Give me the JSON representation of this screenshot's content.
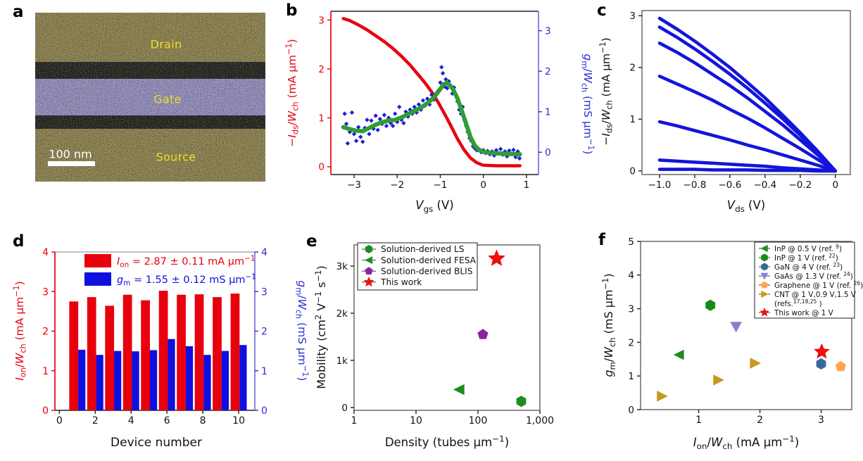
{
  "panels": {
    "a": {
      "letter": "a",
      "labels": {
        "drain": "Drain",
        "gate": "Gate",
        "source": "Source"
      },
      "scale_bar": "100 nm",
      "colors": {
        "electrode": "#9a8d52",
        "spacer": "#211f1a",
        "gate": "#a29cd4",
        "label_text": "#ecdf25",
        "scale_bar": "#ffffff"
      }
    },
    "b": {
      "letter": "b"
    },
    "c": {
      "letter": "c"
    },
    "d": {
      "letter": "d"
    },
    "e": {
      "letter": "e"
    },
    "f": {
      "letter": "f"
    }
  },
  "chart_data": [
    {
      "id": "b",
      "type": "line+scatter",
      "xlabel": "*V*_gs_ (V)",
      "xlim": [
        -3.54,
        1.28
      ],
      "xticks": [
        -3,
        -2,
        -1,
        0,
        1
      ],
      "axes_left": {
        "label": "−*I*_ds_/*W*_ch_ (mA µm^−1^)",
        "lim": [
          -0.16,
          3.18
        ],
        "ticks": [
          0,
          1,
          2,
          3
        ],
        "color": "#e8000d",
        "spine": "#e8000d"
      },
      "axes_right": {
        "label": "*g*_m_/*W*_ch_ (mS µm^−1^)",
        "lim": [
          -0.55,
          3.48
        ],
        "ticks": [
          0,
          1,
          2,
          3
        ],
        "color": "#2b2bcf",
        "spine": "#7474dc"
      },
      "series": [
        {
          "name": "drain-current",
          "axis": "left",
          "kind": "line",
          "color": "#e8000d",
          "width": 4.5,
          "points": [
            [
              -3.25,
              3.03
            ],
            [
              -3.1,
              2.99
            ],
            [
              -2.9,
              2.9
            ],
            [
              -2.7,
              2.8
            ],
            [
              -2.5,
              2.68
            ],
            [
              -2.3,
              2.56
            ],
            [
              -2.1,
              2.42
            ],
            [
              -1.9,
              2.26
            ],
            [
              -1.7,
              2.08
            ],
            [
              -1.5,
              1.87
            ],
            [
              -1.35,
              1.71
            ],
            [
              -1.2,
              1.53
            ],
            [
              -1.05,
              1.32
            ],
            [
              -0.9,
              1.08
            ],
            [
              -0.75,
              0.83
            ],
            [
              -0.6,
              0.57
            ],
            [
              -0.45,
              0.35
            ],
            [
              -0.3,
              0.18
            ],
            [
              -0.15,
              0.08
            ],
            [
              0,
              0.03
            ],
            [
              0.3,
              0.02
            ],
            [
              0.6,
              0.02
            ],
            [
              0.85,
              0.02
            ]
          ]
        },
        {
          "name": "transconductance-measured",
          "axis": "right",
          "kind": "scatter",
          "marker": "diamond",
          "size": 3.2,
          "color": "#1f1fd8",
          "points": [
            [
              -3.22,
              0.95
            ],
            [
              -3.18,
              0.7
            ],
            [
              -3.15,
              0.22
            ],
            [
              -3.1,
              0.5
            ],
            [
              -3.05,
              0.98
            ],
            [
              -3.0,
              0.45
            ],
            [
              -2.95,
              0.28
            ],
            [
              -2.9,
              0.62
            ],
            [
              -2.85,
              0.38
            ],
            [
              -2.8,
              0.26
            ],
            [
              -2.75,
              0.6
            ],
            [
              -2.7,
              0.8
            ],
            [
              -2.65,
              0.45
            ],
            [
              -2.6,
              0.78
            ],
            [
              -2.55,
              0.58
            ],
            [
              -2.5,
              0.9
            ],
            [
              -2.45,
              0.55
            ],
            [
              -2.4,
              0.82
            ],
            [
              -2.35,
              0.7
            ],
            [
              -2.3,
              0.92
            ],
            [
              -2.25,
              0.65
            ],
            [
              -2.2,
              0.85
            ],
            [
              -2.15,
              0.72
            ],
            [
              -2.1,
              0.65
            ],
            [
              -2.05,
              0.95
            ],
            [
              -2.0,
              0.75
            ],
            [
              -1.95,
              1.12
            ],
            [
              -1.9,
              0.8
            ],
            [
              -1.85,
              0.72
            ],
            [
              -1.8,
              1.0
            ],
            [
              -1.75,
              0.88
            ],
            [
              -1.7,
              1.05
            ],
            [
              -1.65,
              0.95
            ],
            [
              -1.6,
              1.12
            ],
            [
              -1.55,
              0.98
            ],
            [
              -1.5,
              1.18
            ],
            [
              -1.45,
              1.05
            ],
            [
              -1.4,
              1.28
            ],
            [
              -1.35,
              1.15
            ],
            [
              -1.3,
              1.32
            ],
            [
              -1.25,
              1.18
            ],
            [
              -1.2,
              1.42
            ],
            [
              -1.15,
              1.3
            ],
            [
              -1.1,
              1.45
            ],
            [
              -1.05,
              1.52
            ],
            [
              -1.0,
              1.72
            ],
            [
              -0.97,
              2.1
            ],
            [
              -0.94,
              1.95
            ],
            [
              -0.9,
              1.62
            ],
            [
              -0.87,
              1.8
            ],
            [
              -0.84,
              1.58
            ],
            [
              -0.8,
              1.75
            ],
            [
              -0.76,
              1.65
            ],
            [
              -0.72,
              1.45
            ],
            [
              -0.68,
              1.6
            ],
            [
              -0.64,
              1.42
            ],
            [
              -0.6,
              1.25
            ],
            [
              -0.56,
              1.05
            ],
            [
              -0.52,
              0.95
            ],
            [
              -0.48,
              1.12
            ],
            [
              -0.44,
              0.8
            ],
            [
              -0.4,
              0.65
            ],
            [
              -0.36,
              0.5
            ],
            [
              -0.32,
              0.35
            ],
            [
              -0.28,
              0.28
            ],
            [
              -0.24,
              0.15
            ],
            [
              -0.2,
              0.1
            ],
            [
              -0.15,
              0.05
            ],
            [
              -0.1,
              0.08
            ],
            [
              -0.05,
              0.0
            ],
            [
              0.0,
              0.05
            ],
            [
              0.05,
              -0.02
            ],
            [
              0.1,
              0.03
            ],
            [
              0.15,
              -0.05
            ],
            [
              0.2,
              0.02
            ],
            [
              0.25,
              -0.08
            ],
            [
              0.3,
              0.05
            ],
            [
              0.35,
              -0.03
            ],
            [
              0.4,
              0.08
            ],
            [
              0.45,
              -0.06
            ],
            [
              0.5,
              0.02
            ],
            [
              0.55,
              -0.1
            ],
            [
              0.6,
              0.04
            ],
            [
              0.65,
              -0.04
            ],
            [
              0.7,
              0.06
            ],
            [
              0.75,
              -0.12
            ],
            [
              0.8,
              0.02
            ],
            [
              0.84,
              -0.15
            ]
          ]
        },
        {
          "name": "transconductance-smoothed",
          "axis": "right",
          "kind": "line",
          "color": "#2f9e33",
          "width": 6,
          "points": [
            [
              -3.25,
              0.62
            ],
            [
              -3.1,
              0.57
            ],
            [
              -2.95,
              0.53
            ],
            [
              -2.8,
              0.52
            ],
            [
              -2.65,
              0.6
            ],
            [
              -2.5,
              0.68
            ],
            [
              -2.35,
              0.74
            ],
            [
              -2.2,
              0.78
            ],
            [
              -2.05,
              0.8
            ],
            [
              -1.9,
              0.86
            ],
            [
              -1.75,
              0.94
            ],
            [
              -1.6,
              1.02
            ],
            [
              -1.45,
              1.1
            ],
            [
              -1.3,
              1.21
            ],
            [
              -1.15,
              1.35
            ],
            [
              -1.0,
              1.56
            ],
            [
              -0.92,
              1.68
            ],
            [
              -0.85,
              1.71
            ],
            [
              -0.78,
              1.66
            ],
            [
              -0.7,
              1.55
            ],
            [
              -0.6,
              1.33
            ],
            [
              -0.5,
              1.02
            ],
            [
              -0.4,
              0.7
            ],
            [
              -0.3,
              0.38
            ],
            [
              -0.2,
              0.17
            ],
            [
              -0.1,
              0.06
            ],
            [
              0,
              0.01
            ],
            [
              0.2,
              -0.02
            ],
            [
              0.4,
              -0.03
            ],
            [
              0.6,
              -0.04
            ],
            [
              0.85,
              -0.05
            ]
          ]
        }
      ]
    },
    {
      "id": "c",
      "type": "line",
      "xlabel": "*V*_ds_ (V)",
      "ylabel": "−*I*_ds_/*W*_ch_ (mA µm^−1^)",
      "xlim": [
        -1.1,
        0.085
      ],
      "ylim": [
        -0.07,
        3.1
      ],
      "xticks": [
        -1,
        -0.8,
        -0.6,
        -0.4,
        -0.2,
        0
      ],
      "xtick_labels": [
        "−1.0",
        "−0.8",
        "−0.6",
        "−0.4",
        "−0.2",
        "0"
      ],
      "yticks": [
        0,
        1,
        2,
        3
      ],
      "color": "#1414dc",
      "width": 4.6,
      "vds": [
        0,
        -0.1,
        -0.2,
        -0.3,
        -0.4,
        -0.5,
        -0.6,
        -0.7,
        -0.8,
        -0.9,
        -1.0
      ],
      "curves": [
        [
          0,
          0.38,
          0.74,
          1.08,
          1.41,
          1.71,
          2.0,
          2.26,
          2.51,
          2.74,
          2.95
        ],
        [
          0,
          0.35,
          0.69,
          1.01,
          1.31,
          1.6,
          1.87,
          2.12,
          2.36,
          2.58,
          2.78
        ],
        [
          0,
          0.31,
          0.6,
          0.89,
          1.15,
          1.41,
          1.65,
          1.87,
          2.09,
          2.29,
          2.47
        ],
        [
          0,
          0.22,
          0.43,
          0.63,
          0.83,
          1.02,
          1.19,
          1.37,
          1.53,
          1.68,
          1.83
        ],
        [
          0,
          0.11,
          0.21,
          0.31,
          0.41,
          0.5,
          0.6,
          0.69,
          0.78,
          0.87,
          0.95
        ],
        [
          0,
          0.02,
          0.04,
          0.06,
          0.09,
          0.11,
          0.13,
          0.15,
          0.17,
          0.19,
          0.21
        ],
        [
          0,
          0.0,
          0.01,
          0.01,
          0.01,
          0.02,
          0.02,
          0.02,
          0.03,
          0.03,
          0.03
        ]
      ]
    },
    {
      "id": "d",
      "type": "bar",
      "xlabel": "Device number",
      "categories": [
        1,
        2,
        3,
        4,
        5,
        6,
        7,
        8,
        9,
        10
      ],
      "xlim": [
        -0.25,
        10.9
      ],
      "xticks": [
        0,
        2,
        4,
        6,
        8,
        10
      ],
      "axes_left": {
        "label": "*I*_on_/*W*_ch_ (mA µm^−1^)",
        "lim": [
          0,
          4
        ],
        "ticks": [
          0,
          1,
          2,
          3,
          4
        ],
        "color": "#e8000d",
        "spine": "#e8000d"
      },
      "axes_right": {
        "label": "*g*_m_/*W*_ch_ (mS µm^−1^)",
        "lim": [
          0,
          4
        ],
        "ticks": [
          0,
          1,
          2,
          3,
          4
        ],
        "color": "#2b2bcf",
        "spine": "#7474dc"
      },
      "series": [
        {
          "name": "Ion",
          "color": "#e8000d",
          "values": [
            2.75,
            2.86,
            2.64,
            2.92,
            2.78,
            3.02,
            2.92,
            2.93,
            2.86,
            2.95
          ]
        },
        {
          "name": "gm",
          "color": "#0f0fe0",
          "values": [
            1.53,
            1.4,
            1.5,
            1.49,
            1.52,
            1.8,
            1.62,
            1.4,
            1.5,
            1.65
          ]
        }
      ],
      "legend": [
        {
          "color": "#e8000d",
          "label": "*I*_on_ = 2.87 ± 0.11 mA µm^−1^"
        },
        {
          "color": "#0f0fe0",
          "label": "*g*_m_ = 1.55 ± 0.12 mS µm^−1^"
        }
      ]
    },
    {
      "id": "e",
      "type": "scatter",
      "xlabel": "Density (tubes µm^−1^)",
      "ylabel": "Mobility (cm^2^ V^−1^ s^−1^)",
      "xscale": "log",
      "xlim": [
        1,
        1000
      ],
      "xticks": [
        1,
        10,
        100,
        1000
      ],
      "xtick_labels": [
        "1",
        "10",
        "100",
        "1,000"
      ],
      "ylim": [
        -60,
        3450
      ],
      "yticks": [
        0,
        1000,
        2000,
        3000
      ],
      "ytick_labels": [
        "0",
        "1k",
        "2k",
        "3k"
      ],
      "series": [
        {
          "label": "Solution-derived LS",
          "marker": "hexagon",
          "color": "#1e8c1e",
          "size": 8,
          "points": [
            [
              500,
              130
            ]
          ]
        },
        {
          "label": "Solution-derived FESA",
          "marker": "tri-left",
          "color": "#1e8c1e",
          "size": 8.5,
          "points": [
            [
              50,
              380
            ]
          ]
        },
        {
          "label": "Solution-derived BLIS",
          "marker": "pentagon",
          "color": "#8c22a0",
          "size": 8,
          "points": [
            [
              120,
              1550
            ]
          ]
        },
        {
          "label": "This work",
          "marker": "star",
          "color": "#f20d0d",
          "size": 13,
          "points": [
            [
              200,
              3160
            ]
          ]
        }
      ]
    },
    {
      "id": "f",
      "type": "scatter",
      "xlabel": "*I*_on_/*W*_ch_ (mA µm^−1^)",
      "ylabel": "*g*_m_/*W*_ch_ (mS µm^−1^)",
      "xlim": [
        0.05,
        3.5
      ],
      "xticks": [
        1,
        2,
        3
      ],
      "ylim": [
        0,
        5
      ],
      "yticks": [
        0,
        1,
        2,
        3,
        4,
        5
      ],
      "series": [
        {
          "label": "InP @ 0.5 V (ref. ^9^)",
          "marker": "tri-left",
          "color": "#1e8c1e",
          "size": 8,
          "points": [
            [
              0.68,
              1.63
            ]
          ]
        },
        {
          "label": "InP @ 1 V (ref. ^22^)",
          "marker": "hexagon",
          "color": "#188a18",
          "size": 8,
          "points": [
            [
              1.19,
              3.1
            ]
          ]
        },
        {
          "label": "GaN @ 4 V (ref. ^23^)",
          "marker": "hexagon",
          "color": "#38699e",
          "size": 8,
          "points": [
            [
              3.0,
              1.36
            ]
          ]
        },
        {
          "label": "GaAs @ 1.3 V (ref. ^24^)",
          "marker": "tri-down",
          "color": "#8381d8",
          "size": 8.5,
          "points": [
            [
              1.61,
              2.47
            ]
          ]
        },
        {
          "label": "Graphene @ 1 V (ref. ^26^)",
          "marker": "pentagon",
          "color": "#ffa64f",
          "size": 8,
          "points": [
            [
              3.32,
              1.28
            ]
          ]
        },
        {
          "label": "CNT @ 1 V,0.9 V,1.5 V",
          "label2": "(refs.^17,18,25^ )",
          "marker": "tri-right",
          "color": "#c8991e",
          "size": 8.5,
          "points": [
            [
              0.4,
              0.4
            ],
            [
              1.32,
              0.88
            ],
            [
              1.92,
              1.38
            ]
          ]
        },
        {
          "label": "This work @ 1 V",
          "marker": "star",
          "color": "#f20d0d",
          "size": 12,
          "points": [
            [
              3.01,
              1.72
            ]
          ]
        }
      ]
    }
  ]
}
